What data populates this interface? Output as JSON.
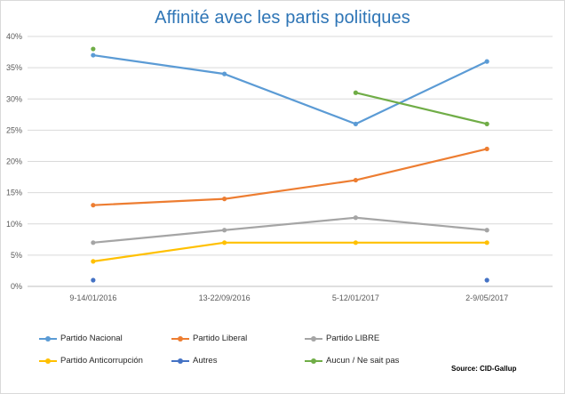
{
  "chart_data": {
    "type": "line",
    "title": "Affinité avec les partis politiques",
    "categories": [
      "9-14/01/2016",
      "13-22/09/2016",
      "5-12/01/2017",
      "2-9/05/2017"
    ],
    "y_ticks": [
      "0%",
      "5%",
      "10%",
      "15%",
      "20%",
      "25%",
      "30%",
      "35%",
      "40%"
    ],
    "ylim": [
      0,
      40
    ],
    "y_unit": "%",
    "grid": true,
    "legend_position": "bottom",
    "series": [
      {
        "name": "Partido Nacional",
        "color": "#5b9bd5",
        "values": [
          37,
          34,
          26,
          36
        ]
      },
      {
        "name": "Partido Liberal",
        "color": "#ed7d31",
        "values": [
          13,
          14,
          17,
          22
        ]
      },
      {
        "name": "Partido LIBRE",
        "color": "#a5a5a5",
        "values": [
          7,
          9,
          11,
          9
        ]
      },
      {
        "name": "Partido Anticorrupción",
        "color": "#ffc000",
        "values": [
          4,
          7,
          7,
          7
        ]
      },
      {
        "name": "Autres",
        "color": "#4472c4",
        "values": [
          1,
          null,
          null,
          1
        ]
      },
      {
        "name": "Aucun / Ne sait pas",
        "color": "#70ad47",
        "values": [
          38,
          null,
          31,
          26
        ]
      }
    ],
    "source": "Source: CID-Gallup"
  }
}
